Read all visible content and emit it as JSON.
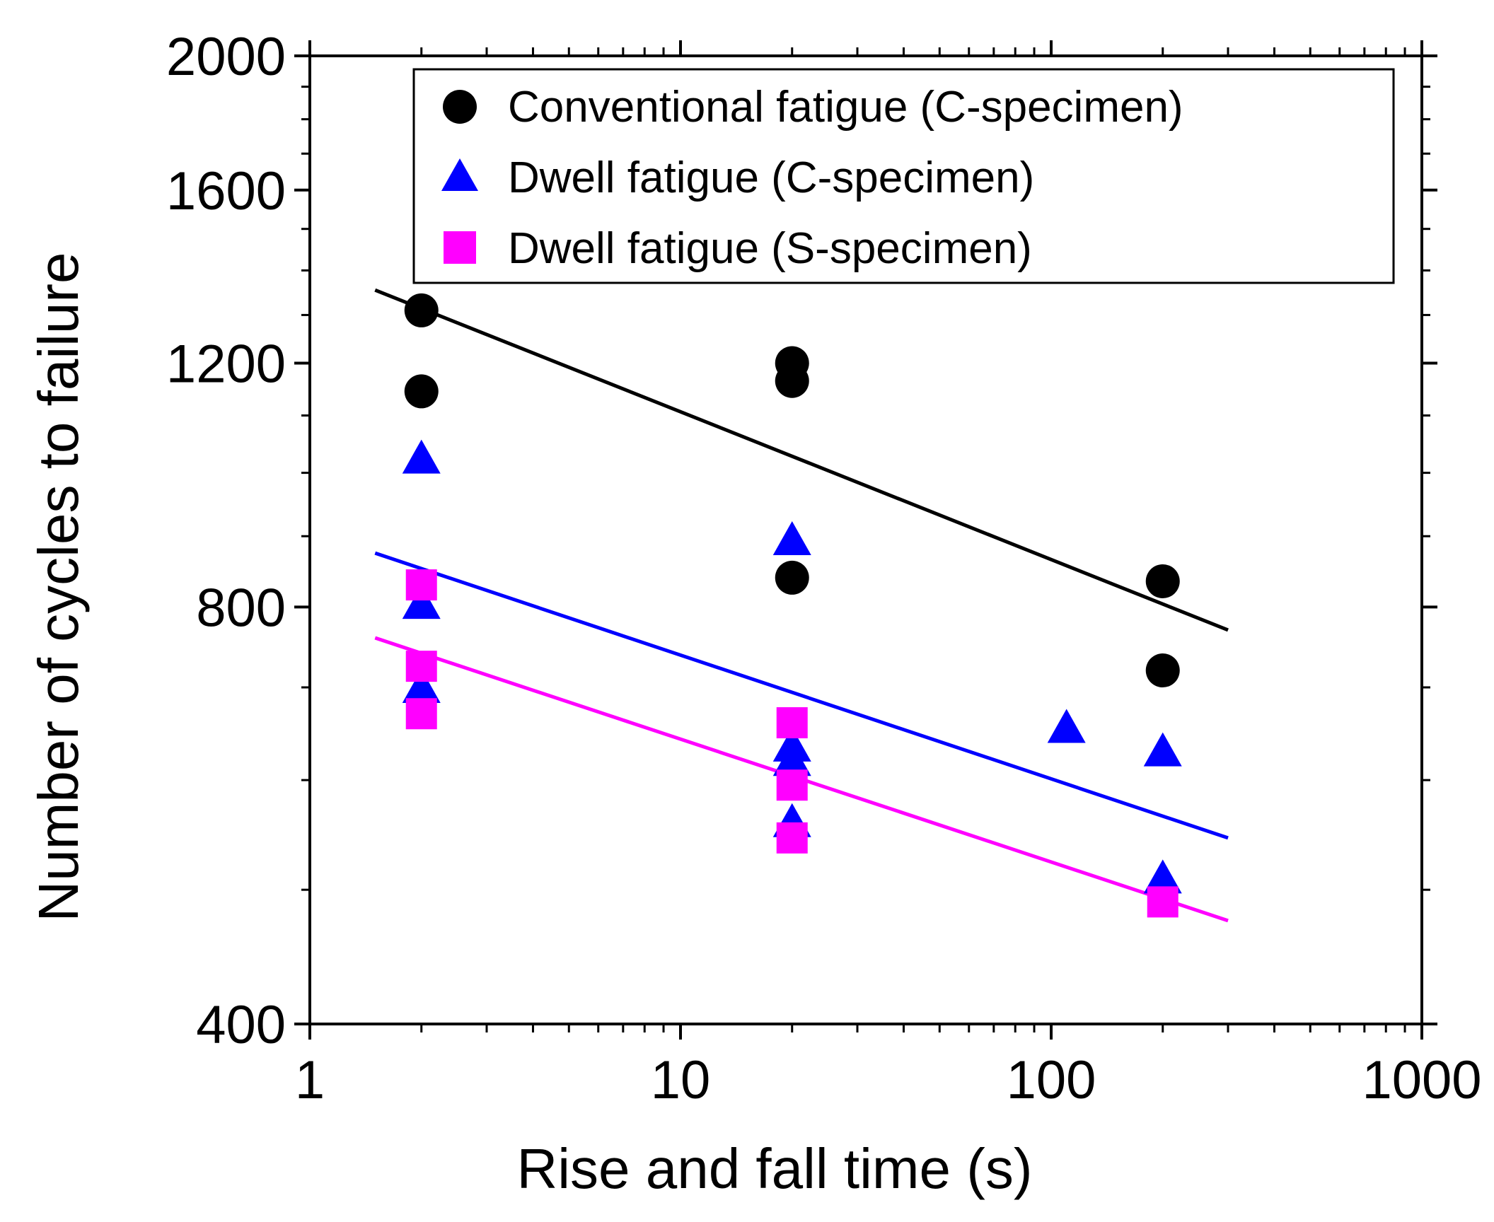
{
  "chart_data": {
    "type": "scatter",
    "title": "",
    "xlabel": "Rise and fall time (s)",
    "ylabel": "Number of cycles to failure",
    "xscale": "log",
    "yscale": "log",
    "xlim": [
      1,
      1000
    ],
    "ylim": [
      400,
      2000
    ],
    "xticks": [
      1,
      10,
      100,
      1000
    ],
    "xtick_labels": [
      "1",
      "10",
      "100",
      "1000"
    ],
    "yticks": [
      400,
      800,
      1200,
      1600,
      2000
    ],
    "ytick_labels": [
      "400",
      "800",
      "1200",
      "1600",
      "2000"
    ],
    "grid": false,
    "legend_position": "top-right",
    "series": [
      {
        "name": "Conventional fatigue (C-specimen)",
        "marker": "circle",
        "color": "#000000",
        "points": [
          [
            2,
            1310
          ],
          [
            2,
            1145
          ],
          [
            20,
            1200
          ],
          [
            20,
            1165
          ],
          [
            20,
            840
          ],
          [
            200,
            835
          ],
          [
            200,
            720
          ]
        ],
        "fit": {
          "x": [
            1.5,
            300
          ],
          "y": [
            1355,
            770
          ]
        }
      },
      {
        "name": "Dwell fatigue (C-specimen)",
        "marker": "triangle",
        "color": "#0000ff",
        "points": [
          [
            2,
            1025
          ],
          [
            2,
            805
          ],
          [
            2,
            700
          ],
          [
            20,
            895
          ],
          [
            20,
            635
          ],
          [
            20,
            620
          ],
          [
            20,
            560
          ],
          [
            110,
            655
          ],
          [
            200,
            630
          ],
          [
            200,
            510
          ]
        ],
        "fit": {
          "x": [
            1.5,
            300
          ],
          "y": [
            875,
            545
          ]
        }
      },
      {
        "name": "Dwell fatigue (S-specimen)",
        "marker": "square",
        "color": "#ff00ff",
        "points": [
          [
            2,
            830
          ],
          [
            2,
            725
          ],
          [
            2,
            670
          ],
          [
            20,
            660
          ],
          [
            20,
            595
          ],
          [
            20,
            545
          ],
          [
            200,
            490
          ]
        ],
        "fit": {
          "x": [
            1.5,
            300
          ],
          "y": [
            760,
            475
          ]
        }
      }
    ]
  }
}
